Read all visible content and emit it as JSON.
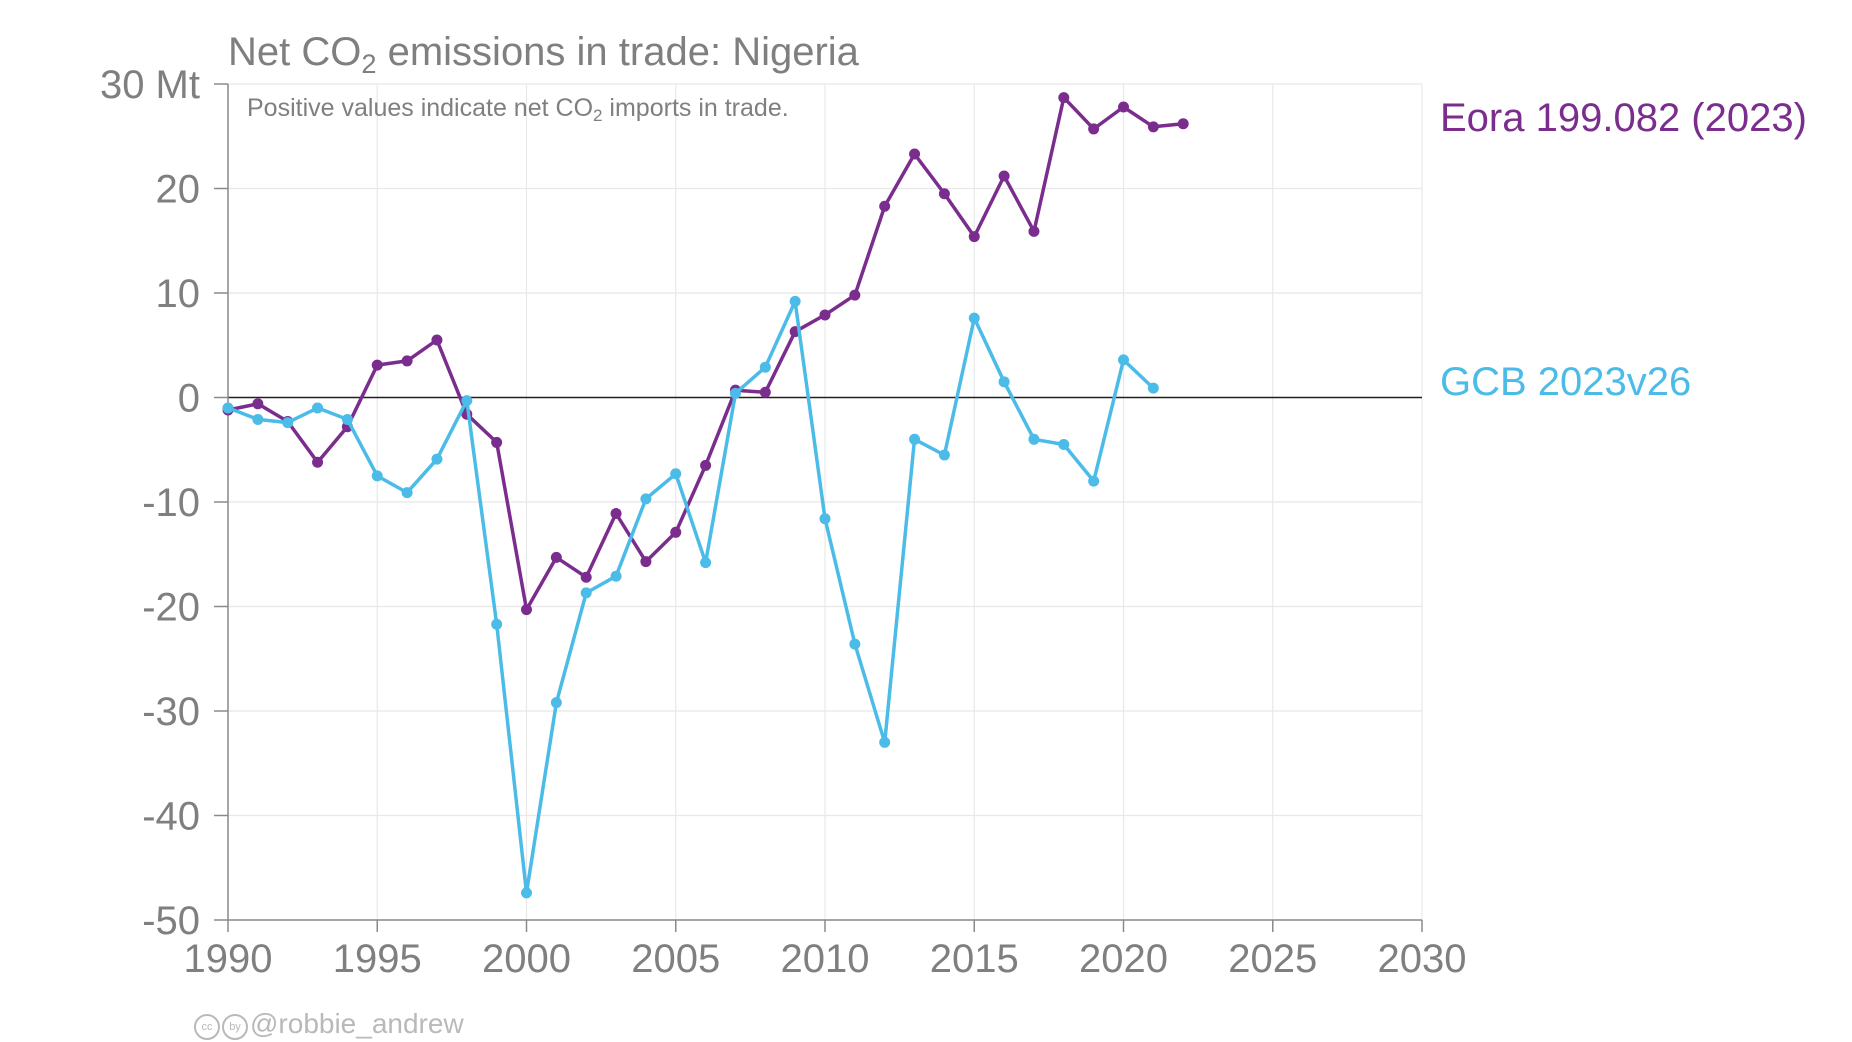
{
  "title": {
    "prefix": "Net CO",
    "sub": "2",
    "suffix": " emissions in trade: Nigeria"
  },
  "subtitle": {
    "prefix": "Positive values indicate net CO",
    "sub": "2",
    "suffix": " imports in trade."
  },
  "credit": {
    "cc_icon": "cc",
    "by_icon": "by",
    "handle": "@robbie_andrew"
  },
  "colors": {
    "eora": "#7b2d8e",
    "gcb": "#4bbbe8",
    "axis_text": "#7f7f7f",
    "grid": "#e8e8e8",
    "zero_line": "#222222"
  },
  "chart_data": {
    "type": "line",
    "xlim": [
      1990,
      2030
    ],
    "ylim": [
      -50,
      30
    ],
    "unit_label": "Mt",
    "x_ticks": [
      1990,
      1995,
      2000,
      2005,
      2010,
      2015,
      2020,
      2025,
      2030
    ],
    "y_ticks": [
      -50,
      -40,
      -30,
      -20,
      -10,
      0,
      10,
      20,
      30
    ],
    "y_tick_labels": [
      "-50",
      "-40",
      "-30",
      "-20",
      "-10",
      "0",
      "10",
      "20",
      "30 Mt"
    ],
    "grid": true,
    "legend": "direct labels at right of series",
    "series": [
      {
        "name": "Eora 199.082 (2023)",
        "color": "#7b2d8e",
        "x": [
          1990,
          1991,
          1992,
          1993,
          1994,
          1995,
          1996,
          1997,
          1998,
          1999,
          2000,
          2001,
          2002,
          2003,
          2004,
          2005,
          2006,
          2007,
          2008,
          2009,
          2010,
          2011,
          2012,
          2013,
          2014,
          2015,
          2016,
          2017,
          2018,
          2019,
          2020,
          2021,
          2022
        ],
        "values": [
          -1.2,
          -0.6,
          -2.3,
          -6.2,
          -2.8,
          3.1,
          3.5,
          5.5,
          -1.6,
          -4.3,
          -20.3,
          -15.3,
          -17.2,
          -11.1,
          -15.7,
          -12.9,
          -6.5,
          0.7,
          0.5,
          6.3,
          7.9,
          9.8,
          18.3,
          23.3,
          19.5,
          15.4,
          21.2,
          15.9,
          28.7,
          25.7,
          27.8,
          25.9,
          26.2
        ]
      },
      {
        "name": "GCB 2023v26",
        "color": "#4bbbe8",
        "x": [
          1990,
          1991,
          1992,
          1993,
          1994,
          1995,
          1996,
          1997,
          1998,
          1999,
          2000,
          2001,
          2002,
          2003,
          2004,
          2005,
          2006,
          2007,
          2008,
          2009,
          2010,
          2011,
          2012,
          2013,
          2014,
          2015,
          2016,
          2017,
          2018,
          2019,
          2020,
          2021
        ],
        "values": [
          -1.0,
          -2.1,
          -2.4,
          -1.0,
          -2.1,
          -7.5,
          -9.1,
          -5.9,
          -0.3,
          -21.7,
          -47.4,
          -29.2,
          -18.7,
          -17.1,
          -9.7,
          -7.3,
          -15.8,
          0.4,
          2.9,
          9.2,
          -11.6,
          -23.6,
          -33.0,
          -4.0,
          -5.5,
          7.6,
          1.5,
          -4.0,
          -4.5,
          -8.0,
          3.6,
          0.9
        ]
      }
    ]
  }
}
